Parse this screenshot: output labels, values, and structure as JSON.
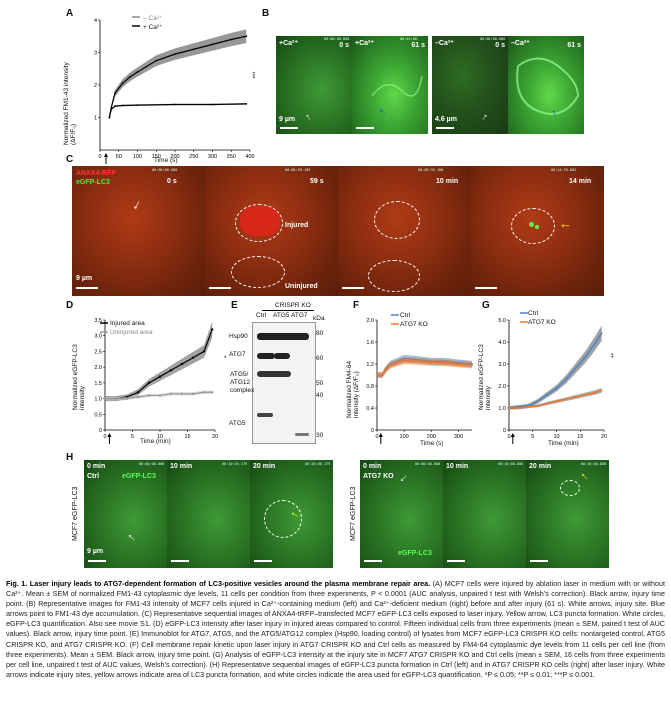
{
  "panels": {
    "A": "A",
    "B": "B",
    "C": "C",
    "D": "D",
    "E": "E",
    "F": "F",
    "G": "G",
    "H": "H"
  },
  "panelA": {
    "ylabel_1": "Normalized FM1-43 intensity",
    "ylabel_2": "(ΔF/F₀)",
    "xlabel": "Time (s)",
    "legend_minus": "– Ca²⁺",
    "legend_plus": "+ Ca²⁺",
    "sig": "***",
    "yticks": [
      "1",
      "2",
      "3",
      "4"
    ],
    "xticks": [
      "0",
      "50",
      "100",
      "150",
      "200",
      "250",
      "300",
      "350",
      "400"
    ]
  },
  "panelB": {
    "t0": "0 s",
    "t61": "61 s",
    "plus": "+Ca²⁺",
    "minus": "–Ca²⁺",
    "scale1": "9 µm",
    "scale2": "4.6 µm"
  },
  "panelC": {
    "anxa": "ANXA4-RFP",
    "egfp": "eGFP-LC3",
    "t0": "0 s",
    "t59": "59 s",
    "t10": "10 min",
    "t14": "14 min",
    "injured": "Injured",
    "uninjured": "Uninjured",
    "scale": "9 µm"
  },
  "panelD": {
    "legend_injured": "Injured area",
    "legend_uninjured": "Uninjured area",
    "ylabel_1": "Normalized eGFP-LC3",
    "ylabel_2": "intensity",
    "xlabel": "Time (min)",
    "yticks": [
      "0",
      "0.5",
      "1.0",
      "1.5",
      "2.0",
      "2.5",
      "3.0",
      "3.5"
    ],
    "xticks": [
      "0",
      "5",
      "10",
      "15",
      "20"
    ],
    "sig": "*"
  },
  "panelE": {
    "header": "CRISPR KO",
    "lanes": [
      "Ctrl",
      "ATG5",
      "ATG7"
    ],
    "rows": [
      "Hsp90",
      "ATG7",
      "ATG5/\nATG12\ncomplex",
      "ATG5"
    ],
    "row_hsp": "Hsp90",
    "row_atg7": "ATG7",
    "row_c1": "ATG5/",
    "row_c2": "ATG12",
    "row_c3": "complex",
    "row_atg5": "ATG5",
    "kda": "kDa",
    "markers": [
      "80",
      "60",
      "50",
      "40",
      "30"
    ]
  },
  "panelF": {
    "legend_ctrl": "Ctrl",
    "legend_ko": "ATG7 KO",
    "ylabel_1": "Normalized FM4-64",
    "ylabel_2": "intensity (ΔF/F₀)",
    "xlabel": "Time (s)",
    "yticks": [
      "0",
      "0.2",
      "0.4",
      "0.6",
      "0.8",
      "1.0",
      "1.2",
      "1.4",
      "1.6",
      "1.8",
      "2.0"
    ],
    "xticks": [
      "0",
      "100",
      "200",
      "300"
    ]
  },
  "panelG": {
    "legend_ctrl": "Ctrl",
    "legend_ko": "ATG7 KO",
    "ylabel_1": "Normalized eGFP-LC3",
    "ylabel_2": "intensity",
    "xlabel": "Time (min)",
    "yticks": [
      "0",
      "0.5",
      "1.0",
      "1.5",
      "2.0",
      "2.5",
      "3.0",
      "3.5",
      "4.0",
      "4.5",
      "5.0"
    ],
    "xticks": [
      "0",
      "5",
      "10",
      "15",
      "20"
    ],
    "sig": "**"
  },
  "panelH": {
    "t0": "0 min",
    "t10": "10 min",
    "t20": "20 min",
    "ctrl": "Ctrl",
    "ko": "ATG7 KO",
    "egfp": "eGFP-LC3",
    "ylab": "MCF7 eGFP-LC3",
    "scale": "9 µm"
  },
  "caption": {
    "title": "Fig. 1. Laser injury leads to ATG7-dependent formation of LC3-positive vesicles around the plasma membrane repair area.",
    "body": " (A) MCF7 cells were injured by ablation laser in medium with or without Ca²⁺. Mean ± SEM of normalized FM1-43 cytoplasmic dye levels, 11 cells per condition from three experiments, P < 0.0001 (AUC analysis, unpaired t test with Welsh’s correction). Black arrow, injury time point. (B) Representative images for FM1-43 intensity of MCF7 cells injured in Ca²⁺-containing medium (left) and Ca²⁺-deficient medium (right) before and after injury (61 s). White arrows, injury site. Blue arrows point to FM1-43 dye accumulation. (C) Representative sequential images of ANXA4-tRFP–transfected MCF7 eGFP-LC3 cells exposed to laser injury. Yellow arrow, LC3 puncta formation. White circles, eGFP-LC3 quantification. Also see movie S1. (D) eGFP-LC3 intensity after laser injury in injured areas compared to control. Fifteen individual cells from three experiments (mean ± SEM, paired t test of AUC values). Black arrow, injury time point. (E) Immunoblot for ATG7, ATG5, and the ATG5/ATG12 complex (Hsp90, loading control) of lysates from MCF7 eGFP-LC3 CRISPR KO cells: nontargeted control, ATG5 CRISPR KO, and ATG7 CRISPR KO. (F) Cell membrane repair kinetic upon laser injury in ATG7 CRISPR KO and Ctrl cells as measured by FM4-64 cytoplasmic dye levels from 11 cells per cell line (from three experiments). Mean ± SEM. Black arrow, injury time point. (G) Analysis of eGFP-LC3 intensity at the injury site in MCF7 ATG7 CRISPR KO and Ctrl cells (mean ± SEM, 16 cells from three experiments per cell line, unpaired t test of AUC values, Welsh’s correction). (H) Representative sequential images of eGFP-LC3 puncta formation in Ctrl (left) and in ATG7 CRISPR KO cells (right) after laser injury. White arrows indicate injury sites, yellow arrows indicate area of LC3 puncta formation, and white circles indicate the area used for eGFP-LC3 quantification. *P ≤ 0.05; **P ≤ 0.01; ***P ≤ 0.001."
  },
  "chart_data": [
    {
      "panel": "A",
      "type": "line",
      "xlabel": "Time (s)",
      "ylabel": "Normalized FM1-43 intensity (ΔF/F₀)",
      "xlim": [
        0,
        400
      ],
      "ylim": [
        0,
        4
      ],
      "series": [
        {
          "name": "+ Ca²⁺",
          "x": [
            25,
            30,
            40,
            60,
            80,
            100,
            150,
            200,
            250,
            300,
            350,
            390
          ],
          "y": [
            1.0,
            1.3,
            1.75,
            2.05,
            2.25,
            2.4,
            2.75,
            2.95,
            3.1,
            3.25,
            3.4,
            3.5
          ]
        },
        {
          "name": "– Ca²⁺",
          "x": [
            25,
            30,
            40,
            60,
            100,
            200,
            300,
            390
          ],
          "y": [
            1.0,
            1.25,
            1.35,
            1.37,
            1.38,
            1.4,
            1.4,
            1.42
          ]
        }
      ]
    },
    {
      "panel": "D",
      "type": "line",
      "xlabel": "Time (min)",
      "ylabel": "Normalized eGFP-LC3 intensity",
      "xlim": [
        0,
        20
      ],
      "ylim": [
        0,
        3.5
      ],
      "series": [
        {
          "name": "Injured area",
          "x": [
            0,
            2,
            4,
            6,
            8,
            10,
            12,
            14,
            16,
            18,
            19.5
          ],
          "y": [
            1.0,
            1.0,
            1.05,
            1.2,
            1.5,
            1.7,
            1.9,
            2.1,
            2.3,
            2.5,
            3.2
          ]
        },
        {
          "name": "Uninjured area",
          "x": [
            0,
            2,
            4,
            6,
            8,
            10,
            12,
            14,
            16,
            18,
            19.5
          ],
          "y": [
            1.0,
            1.0,
            1.0,
            1.05,
            1.1,
            1.1,
            1.15,
            1.15,
            1.15,
            1.2,
            1.2
          ]
        }
      ]
    },
    {
      "panel": "F",
      "type": "line",
      "xlabel": "Time (s)",
      "ylabel": "Normalized FM4-64 intensity (ΔF/F₀)",
      "xlim": [
        0,
        350
      ],
      "ylim": [
        0,
        2.0
      ],
      "series": [
        {
          "name": "Ctrl",
          "x": [
            0,
            20,
            30,
            50,
            100,
            150,
            200,
            250,
            300,
            350
          ],
          "y": [
            1.0,
            1.0,
            1.1,
            1.2,
            1.3,
            1.28,
            1.25,
            1.25,
            1.22,
            1.2
          ]
        },
        {
          "name": "ATG7 KO",
          "x": [
            0,
            20,
            30,
            50,
            100,
            150,
            200,
            250,
            300,
            350
          ],
          "y": [
            1.0,
            1.0,
            1.08,
            1.18,
            1.26,
            1.25,
            1.23,
            1.22,
            1.2,
            1.18
          ]
        }
      ]
    },
    {
      "panel": "G",
      "type": "line",
      "xlabel": "Time (min)",
      "ylabel": "Normalized eGFP-LC3 intensity",
      "xlim": [
        0,
        20
      ],
      "ylim": [
        0,
        5.0
      ],
      "series": [
        {
          "name": "Ctrl",
          "x": [
            0,
            2,
            4,
            6,
            8,
            10,
            12,
            14,
            16,
            18,
            19.5
          ],
          "y": [
            1.0,
            1.05,
            1.1,
            1.3,
            1.6,
            1.9,
            2.3,
            2.8,
            3.3,
            3.9,
            4.4
          ]
        },
        {
          "name": "ATG7 KO",
          "x": [
            0,
            2,
            4,
            6,
            8,
            10,
            12,
            14,
            16,
            18,
            19.5
          ],
          "y": [
            1.0,
            1.0,
            1.05,
            1.1,
            1.2,
            1.3,
            1.4,
            1.5,
            1.6,
            1.7,
            1.8
          ]
        }
      ]
    }
  ]
}
